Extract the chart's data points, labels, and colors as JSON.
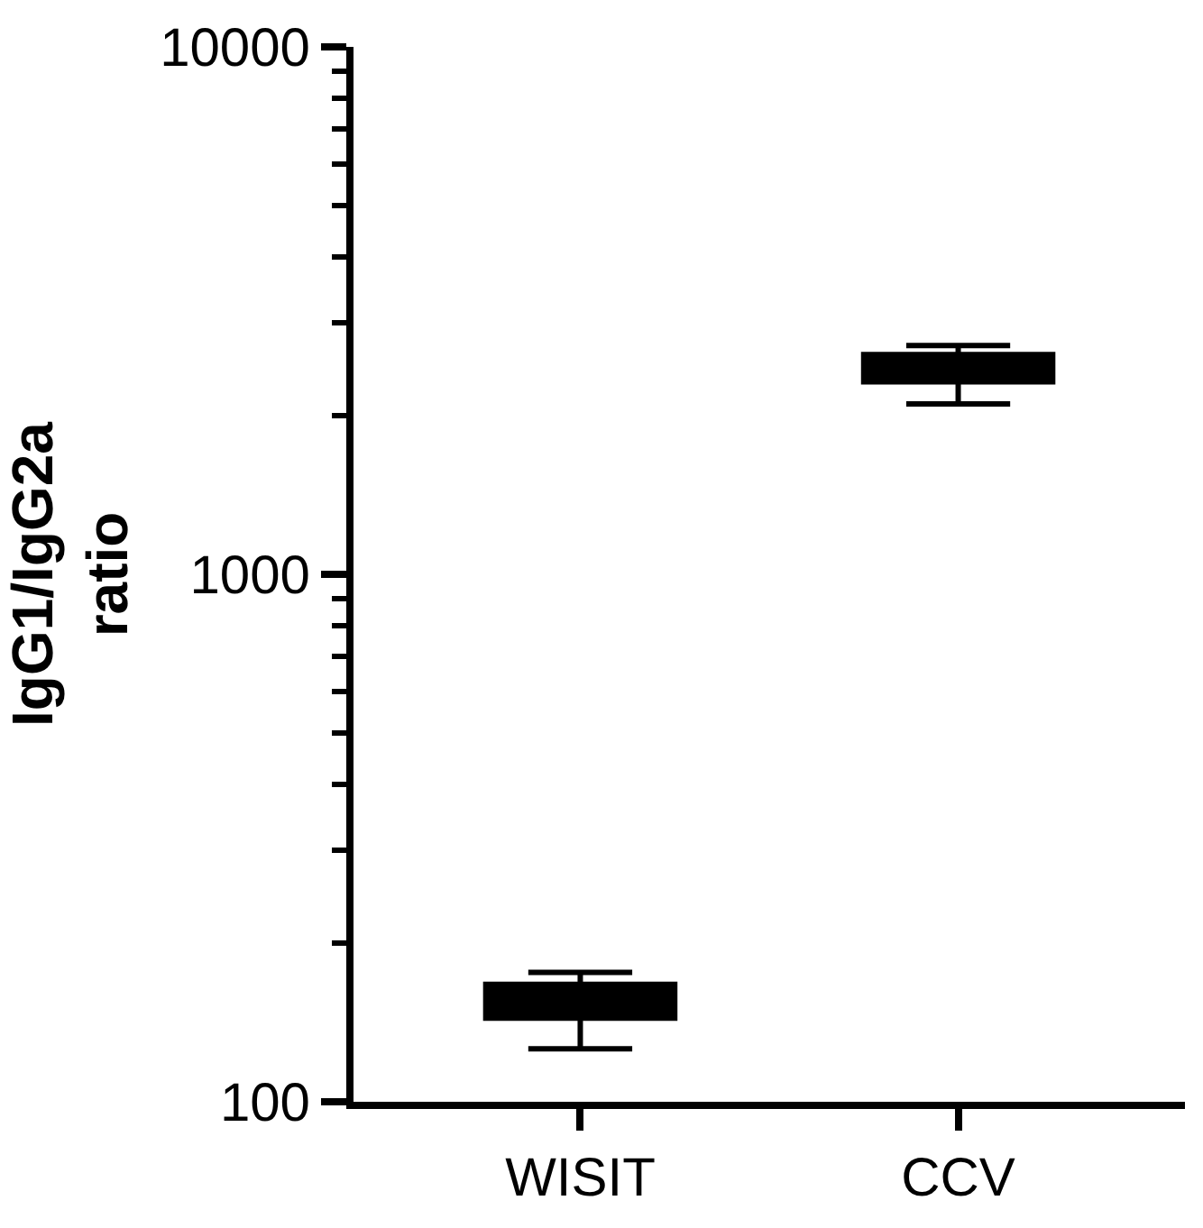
{
  "chart_data": {
    "type": "box",
    "ylabel": "IgG1/IgG2a ratio",
    "categories": [
      "WISIT",
      "CCV"
    ],
    "boxes": [
      {
        "low": 126,
        "q1": 144,
        "median": 155,
        "q3": 167,
        "high": 176
      },
      {
        "low": 2104,
        "q1": 2317,
        "median": 2450,
        "q3": 2611,
        "high": 2716
      }
    ],
    "color": "#000000",
    "log": true,
    "ylim": [
      100,
      10000
    ],
    "yticks": [
      100,
      1000,
      10000
    ]
  }
}
